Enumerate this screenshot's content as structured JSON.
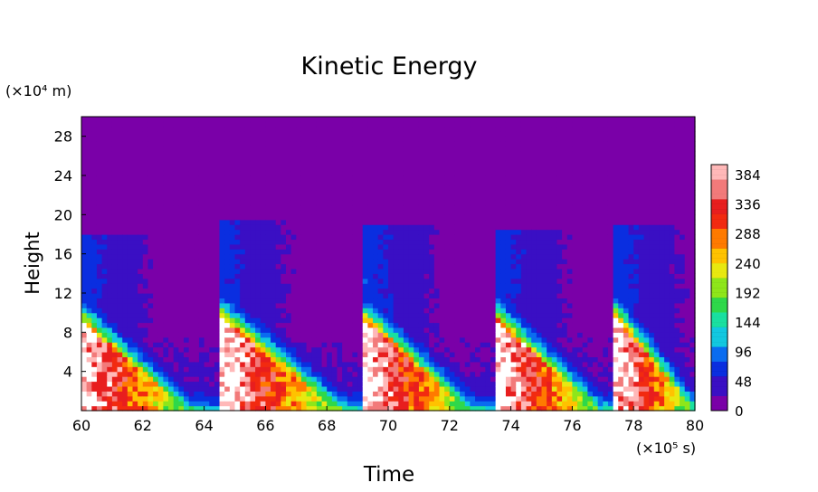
{
  "chart_data": {
    "type": "heatmap",
    "title": "Kinetic Energy",
    "xlabel": "Time",
    "ylabel": "Height",
    "x_unit": "(×10⁵ s)",
    "y_unit": "(×10⁴ m)",
    "xlim": [
      60,
      80
    ],
    "ylim": [
      0,
      30
    ],
    "x_ticks": [
      60,
      62,
      64,
      66,
      68,
      70,
      72,
      74,
      76,
      78,
      80
    ],
    "y_ticks": [
      4,
      8,
      12,
      16,
      20,
      24,
      28
    ],
    "colorbar": {
      "min": 0,
      "max": 400,
      "ticks": [
        0,
        48,
        96,
        144,
        192,
        240,
        288,
        336,
        384
      ],
      "colors": [
        "#7a00a8",
        "#3a0fc4",
        "#0a2ee0",
        "#0a6cf0",
        "#12c8e0",
        "#19e0a0",
        "#2ed84a",
        "#8ee61a",
        "#e8e810",
        "#ffc200",
        "#ff7a00",
        "#f22a10",
        "#e81e1e",
        "#f27a7a",
        "#ffb8b8"
      ],
      "saturated_color": "#ffffff"
    },
    "bursts": [
      {
        "start": 60.0,
        "peak_height": 9.0,
        "top_height": 18.0,
        "decay": 3.5
      },
      {
        "start": 64.5,
        "peak_height": 9.5,
        "top_height": 19.5,
        "decay": 4.0
      },
      {
        "start": 69.3,
        "peak_height": 9.0,
        "top_height": 19.0,
        "decay": 3.4
      },
      {
        "start": 73.6,
        "peak_height": 9.0,
        "top_height": 18.5,
        "decay": 3.3
      },
      {
        "start": 77.4,
        "peak_height": 9.5,
        "top_height": 19.0,
        "decay": 2.6
      }
    ]
  }
}
